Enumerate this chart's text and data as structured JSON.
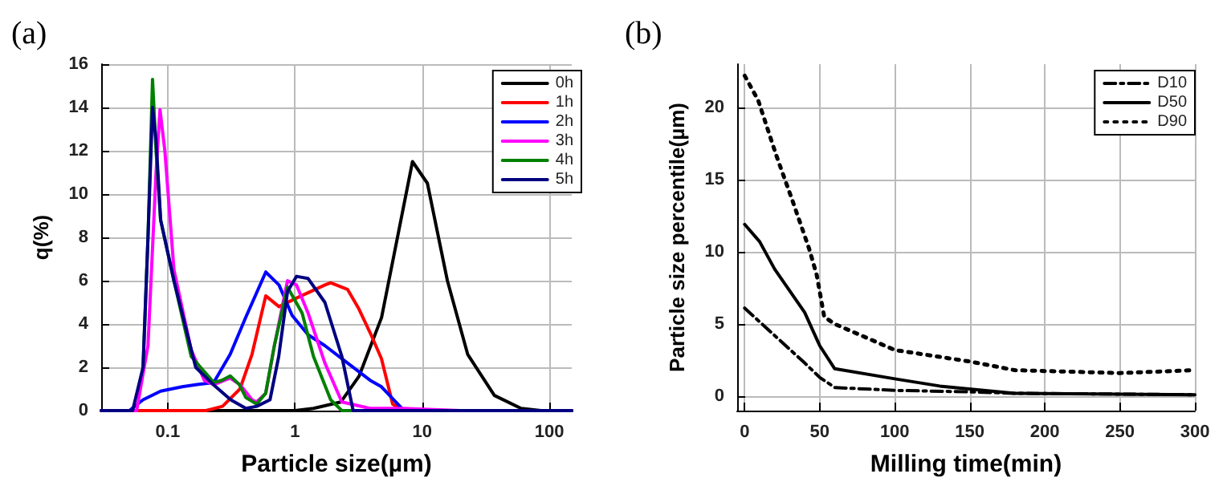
{
  "chart_data": [
    {
      "type": "line",
      "title": "(a)",
      "xlabel": "Particle size(µm)",
      "ylabel": "q(%)",
      "log": "x",
      "xlim": [
        0.03,
        150
      ],
      "xticks": [
        0.1,
        1,
        10,
        100
      ],
      "ylim": [
        0,
        16
      ],
      "yticks": [
        0,
        2,
        4,
        6,
        8,
        10,
        12,
        14,
        16
      ],
      "grid": true,
      "legend": "top right",
      "marker": "none",
      "line_style": "solid",
      "series": [
        {
          "name": "0h",
          "color": "#000000",
          "x": [
            0.03,
            1.0,
            1.4,
            2.3,
            3.2,
            4.8,
            6.5,
            8.4,
            11,
            15.8,
            22.8,
            37,
            60,
            86,
            150
          ],
          "values": [
            0,
            0,
            0.1,
            0.4,
            1.6,
            4.3,
            8.2,
            11.5,
            10.5,
            6,
            2.6,
            0.7,
            0.1,
            0,
            0
          ]
        },
        {
          "name": "1h",
          "color": "#ff0000",
          "x": [
            0.03,
            0.2,
            0.27,
            0.37,
            0.46,
            0.59,
            0.75,
            1.03,
            1.72,
            1.91,
            2.59,
            3.18,
            3.9,
            4.79,
            5.87,
            7.2,
            150
          ],
          "values": [
            0,
            0,
            0.2,
            1,
            2.6,
            5.3,
            4.8,
            5.2,
            5.8,
            5.9,
            5.6,
            4.7,
            3.6,
            2.4,
            0.3,
            0,
            0
          ]
        },
        {
          "name": "2h",
          "color": "#0000ff",
          "x": [
            0.03,
            0.05,
            0.064,
            0.088,
            0.13,
            0.17,
            0.23,
            0.31,
            0.41,
            0.59,
            0.75,
            0.95,
            1.27,
            1.72,
            2.59,
            3.9,
            4.79,
            7.2,
            150
          ],
          "values": [
            0,
            0,
            0.5,
            0.9,
            1.1,
            1.2,
            1.3,
            2.6,
            4.3,
            6.4,
            5.8,
            4.4,
            3.5,
            3,
            2.2,
            1.4,
            1.1,
            0,
            0
          ]
        },
        {
          "name": "3h",
          "color": "#ff00ff",
          "x": [
            0.03,
            0.057,
            0.07,
            0.081,
            0.087,
            0.095,
            0.112,
            0.153,
            0.194,
            0.23,
            0.31,
            0.37,
            0.46,
            0.5,
            0.59,
            0.69,
            0.875,
            1.03,
            1.27,
            1.72,
            2.34,
            3.9,
            7.2,
            20,
            150
          ],
          "values": [
            0,
            0,
            3,
            11,
            13.9,
            12,
            6.5,
            2.8,
            1.4,
            1.2,
            1.5,
            1.2,
            0.5,
            0.4,
            0.8,
            3,
            6,
            5.8,
            4.5,
            2.2,
            0.4,
            0.1,
            0.1,
            0,
            0
          ]
        },
        {
          "name": "4h",
          "color": "#008000",
          "x": [
            0.064,
            0.07,
            0.076,
            0.081,
            0.088,
            0.112,
            0.153,
            0.23,
            0.267,
            0.31,
            0.366,
            0.412,
            0.5,
            0.589,
            0.689,
            0.875,
            1.14,
            1.4,
            1.91,
            2.34,
            150
          ],
          "values": [
            2,
            8,
            15.3,
            12,
            8.8,
            6,
            2.5,
            1.3,
            1.4,
            1.6,
            1.2,
            0.6,
            0.3,
            0.8,
            3,
            5.7,
            4.5,
            2.5,
            0.5,
            0,
            0
          ]
        },
        {
          "name": "5h",
          "color": "#000080",
          "x": [
            0.03,
            0.053,
            0.064,
            0.07,
            0.076,
            0.081,
            0.088,
            0.112,
            0.166,
            0.228,
            0.313,
            0.412,
            0.502,
            0.637,
            0.746,
            0.875,
            1.03,
            1.27,
            1.72,
            2.34,
            2.87,
            150
          ],
          "values": [
            0,
            0,
            2,
            8,
            14,
            12.5,
            8.8,
            6,
            2,
            1.2,
            0.5,
            0.1,
            0.2,
            0.5,
            2.5,
            5.5,
            6.2,
            6.1,
            5,
            2.5,
            0,
            0
          ]
        }
      ]
    },
    {
      "type": "line",
      "title": "(b)",
      "xlabel": "Milling time(min)",
      "ylabel": "Particle size percentile(µm)",
      "xlim": [
        -5,
        300
      ],
      "xticks": [
        0,
        50,
        100,
        150,
        200,
        250,
        300
      ],
      "ylim": [
        -1,
        23
      ],
      "yticks": [
        0,
        5,
        10,
        15,
        20
      ],
      "grid": true,
      "legend": "top right",
      "marker": "none",
      "series": [
        {
          "name": "D10",
          "color": "#000000",
          "line_style": "dashed",
          "x": [
            0,
            20,
            40,
            50,
            60,
            100,
            150,
            180,
            300
          ],
          "values": [
            6.1,
            4.2,
            2.3,
            1.3,
            0.6,
            0.4,
            0.3,
            0.2,
            0.1
          ]
        },
        {
          "name": "D50",
          "color": "#000000",
          "line_style": "solid",
          "x": [
            0,
            10,
            20,
            40,
            50,
            60,
            100,
            130,
            180,
            300
          ],
          "values": [
            11.9,
            10.7,
            8.8,
            5.8,
            3.5,
            1.9,
            1.2,
            0.7,
            0.2,
            0.1
          ]
        },
        {
          "name": "D90",
          "color": "#000000",
          "line_style": "dotted",
          "x": [
            0,
            9,
            21,
            32,
            43,
            48,
            53,
            60,
            100,
            150,
            180,
            250,
            300
          ],
          "values": [
            22.2,
            20.5,
            16.7,
            13.5,
            10.2,
            8.4,
            5.5,
            5,
            3.2,
            2.4,
            1.8,
            1.6,
            1.8
          ]
        }
      ]
    }
  ]
}
